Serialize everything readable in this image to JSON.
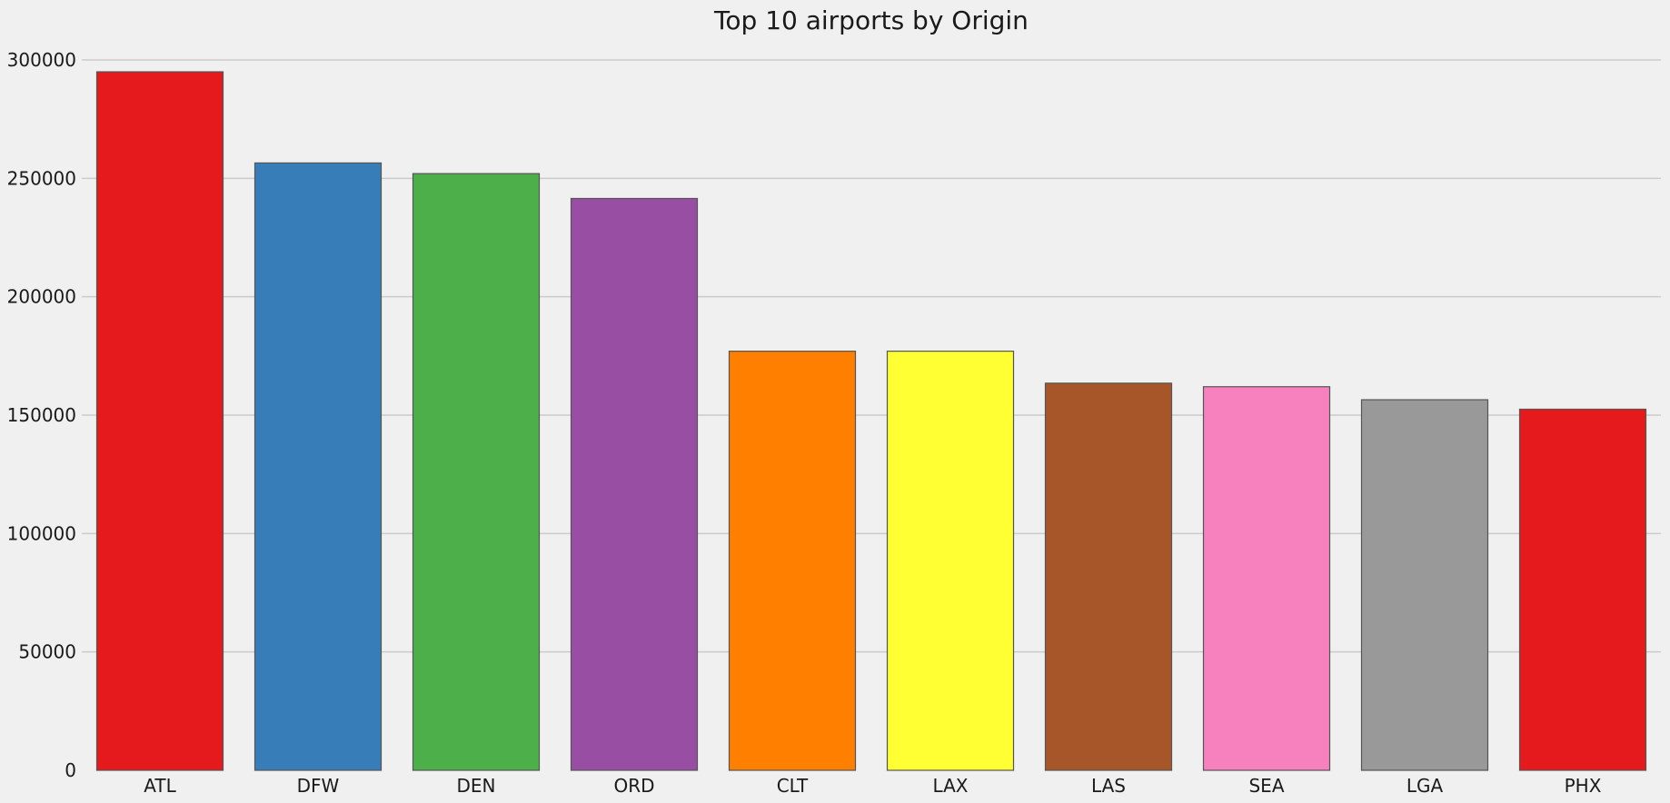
{
  "chart_data": {
    "type": "bar",
    "title": "Top 10 airports by Origin",
    "xlabel": "",
    "ylabel": "",
    "categories": [
      "ATL",
      "DFW",
      "DEN",
      "ORD",
      "CLT",
      "LAX",
      "LAS",
      "SEA",
      "LGA",
      "PHX"
    ],
    "values": [
      295000,
      256500,
      252000,
      241500,
      177000,
      177000,
      163500,
      162000,
      156500,
      152500
    ],
    "colors": [
      "#e41a1c",
      "#377eb8",
      "#4daf4a",
      "#984ea3",
      "#ff7f00",
      "#ffff33",
      "#a65628",
      "#f781bf",
      "#999999",
      "#e41a1c"
    ],
    "ylim": [
      0,
      300000
    ],
    "yticks": [
      "0",
      "50000",
      "100000",
      "150000",
      "200000",
      "250000",
      "300000"
    ],
    "grid": "horizontal",
    "background": "#f0f0f0"
  }
}
